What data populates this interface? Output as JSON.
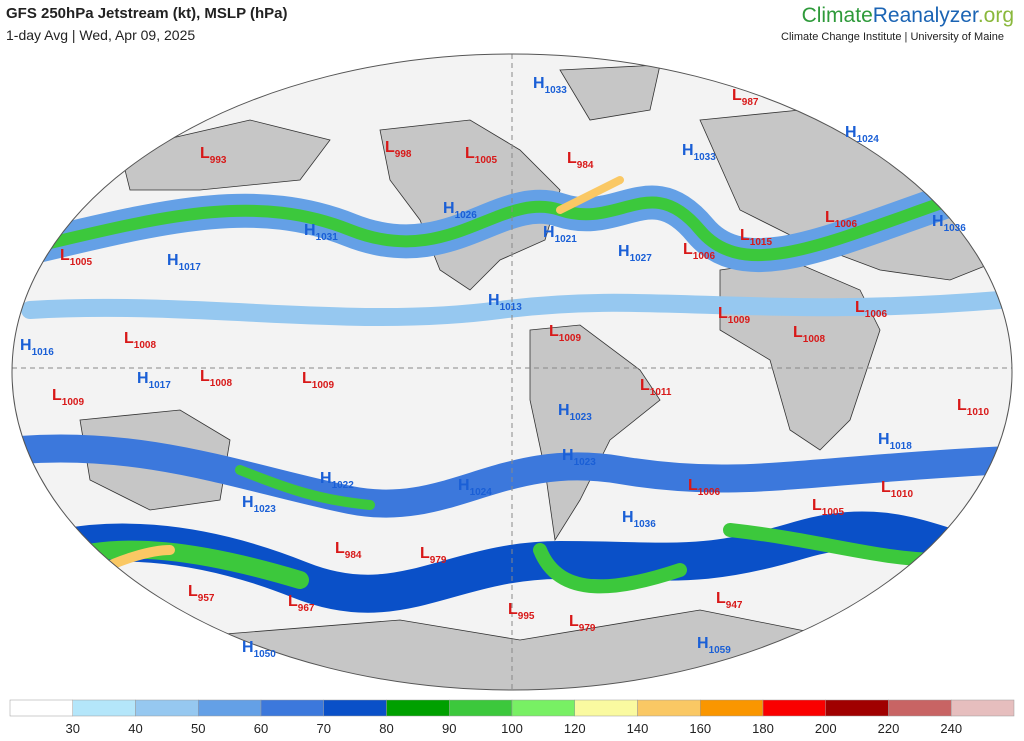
{
  "header": {
    "title": "GFS 250hPa Jetstream (kt), MSLP (hPa)",
    "subtitle": "1-day Avg | Wed, Apr 09, 2025",
    "brand_a": "Climate",
    "brand_b": "Reanalyzer",
    "brand_c": ".org",
    "brand_sub": "Climate Change Institute | University of Maine"
  },
  "centers": [
    {
      "letter": "L",
      "value": 993
    },
    {
      "letter": "L",
      "value": 998
    },
    {
      "letter": "L",
      "value": 1005
    },
    {
      "letter": "L",
      "value": 984
    },
    {
      "letter": "H",
      "value": 1033
    },
    {
      "letter": "L",
      "value": 987
    },
    {
      "letter": "H",
      "value": 1024
    },
    {
      "letter": "H",
      "value": 1033
    },
    {
      "letter": "H",
      "value": 1026
    },
    {
      "letter": "H",
      "value": 1031
    },
    {
      "letter": "H",
      "value": 1021
    },
    {
      "letter": "H",
      "value": 1027
    },
    {
      "letter": "L",
      "value": 1006
    },
    {
      "letter": "L",
      "value": 1015
    },
    {
      "letter": "L",
      "value": 1006
    },
    {
      "letter": "H",
      "value": 1036
    },
    {
      "letter": "L",
      "value": 1005
    },
    {
      "letter": "H",
      "value": 1017
    },
    {
      "letter": "H",
      "value": 1013
    },
    {
      "letter": "L",
      "value": 1009
    },
    {
      "letter": "L",
      "value": 1009
    },
    {
      "letter": "L",
      "value": 1008
    },
    {
      "letter": "L",
      "value": 1006
    },
    {
      "letter": "H",
      "value": 1016
    },
    {
      "letter": "L",
      "value": 1008
    },
    {
      "letter": "H",
      "value": 1017
    },
    {
      "letter": "L",
      "value": 1008
    },
    {
      "letter": "L",
      "value": 1009
    },
    {
      "letter": "L",
      "value": 1011
    },
    {
      "letter": "L",
      "value": 1009
    },
    {
      "letter": "H",
      "value": 1023
    },
    {
      "letter": "L",
      "value": 1010
    },
    {
      "letter": "H",
      "value": 1018
    },
    {
      "letter": "H",
      "value": 1023
    },
    {
      "letter": "H",
      "value": 1022
    },
    {
      "letter": "H",
      "value": 1024
    },
    {
      "letter": "L",
      "value": 1006
    },
    {
      "letter": "L",
      "value": 1010
    },
    {
      "letter": "H",
      "value": 1023
    },
    {
      "letter": "H",
      "value": 1036
    },
    {
      "letter": "L",
      "value": 1005
    },
    {
      "letter": "L",
      "value": 984
    },
    {
      "letter": "L",
      "value": 979
    },
    {
      "letter": "L",
      "value": 957
    },
    {
      "letter": "L",
      "value": 967
    },
    {
      "letter": "L",
      "value": 995
    },
    {
      "letter": "L",
      "value": 979
    },
    {
      "letter": "L",
      "value": 947
    },
    {
      "letter": "H",
      "value": 1050
    },
    {
      "letter": "H",
      "value": 1059
    }
  ],
  "high_color": "#1a5fd6",
  "low_color": "#d81818",
  "colorbar": {
    "ticks": [
      30,
      40,
      50,
      60,
      70,
      80,
      90,
      100,
      120,
      140,
      160,
      180,
      200,
      220,
      240
    ],
    "colors": [
      "#ffffff",
      "#b4e6fa",
      "#96c8f0",
      "#64a0e6",
      "#3c78dc",
      "#0a50c8",
      "#00a000",
      "#3cc83c",
      "#78f064",
      "#fafaa0",
      "#fac864",
      "#fa9600",
      "#fa0000",
      "#a00000",
      "#c86464",
      "#e6bebe"
    ]
  }
}
